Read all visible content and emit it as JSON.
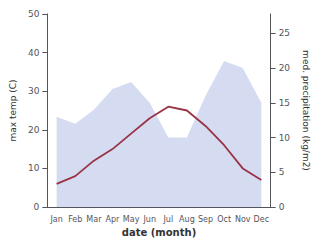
{
  "chart_data": {
    "type": "line",
    "xlabel": "date (month)",
    "ylabel": "max temp (C)",
    "y2label": "med. precipitation (kg/m2)",
    "categories": [
      "Jan",
      "Feb",
      "Mar",
      "Apr",
      "May",
      "Jun",
      "Jul",
      "Aug",
      "Sep",
      "Oct",
      "Nov",
      "Dec"
    ],
    "series": [
      {
        "type": "area",
        "axis": "y2",
        "color": "#b3bfe8",
        "values": [
          13,
          12,
          14,
          17,
          18,
          15,
          10,
          10,
          16,
          21,
          20,
          15
        ]
      },
      {
        "type": "line",
        "color": "#993344",
        "values": [
          6,
          8,
          12,
          15,
          19,
          23,
          26,
          25,
          21,
          16,
          10,
          7
        ]
      }
    ],
    "ylim": [
      0,
      50
    ],
    "yticks": [
      0,
      10,
      20,
      30,
      40,
      50
    ],
    "y2lim": [
      0,
      27.78
    ],
    "y2ticks": [
      0,
      5,
      10,
      15,
      20,
      25
    ],
    "grid": false
  }
}
